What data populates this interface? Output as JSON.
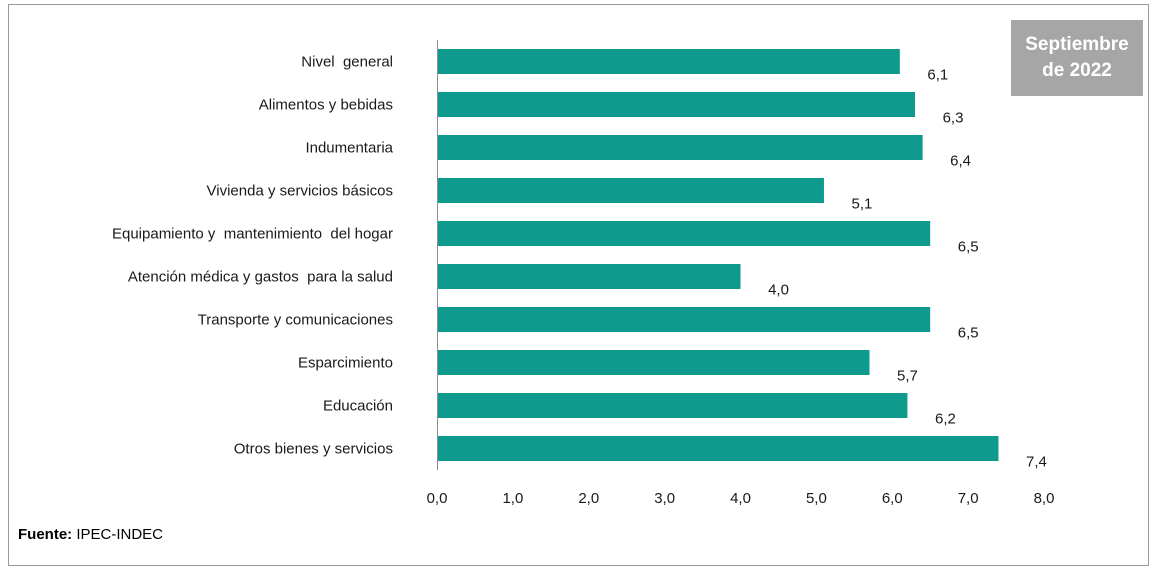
{
  "badge": {
    "line1": "Septiembre",
    "line2": "de 2022"
  },
  "source": {
    "label": "Fuente:",
    "text": " IPEC-INDEC"
  },
  "colors": {
    "bar": "#0e9a8c",
    "axis": "#8c8c8c",
    "badge": "#a6a6a6"
  },
  "chart_data": {
    "type": "bar",
    "orientation": "horizontal",
    "categories": [
      "Nivel  general",
      "Alimentos y bebidas",
      "Indumentaria",
      "Vivienda y servicios básicos",
      "Equipamiento y  mantenimiento  del hogar",
      "Atención médica y gastos  para la salud",
      "Transporte y comunicaciones",
      "Esparcimiento",
      "Educación",
      "Otros bienes y servicios"
    ],
    "values": [
      6.1,
      6.3,
      6.4,
      5.1,
      6.5,
      4.0,
      6.5,
      5.7,
      6.2,
      7.4
    ],
    "value_labels": [
      "6,1",
      "6,3",
      "6,4",
      "5,1",
      "6,5",
      "4,0",
      "6,5",
      "5,7",
      "6,2",
      "7,4"
    ],
    "xlim": [
      0,
      8
    ],
    "xticks": [
      0,
      1,
      2,
      3,
      4,
      5,
      6,
      7,
      8
    ],
    "xtick_labels": [
      "0,0",
      "1,0",
      "2,0",
      "3,0",
      "4,0",
      "5,0",
      "6,0",
      "7,0",
      "8,0"
    ],
    "grid": false
  }
}
